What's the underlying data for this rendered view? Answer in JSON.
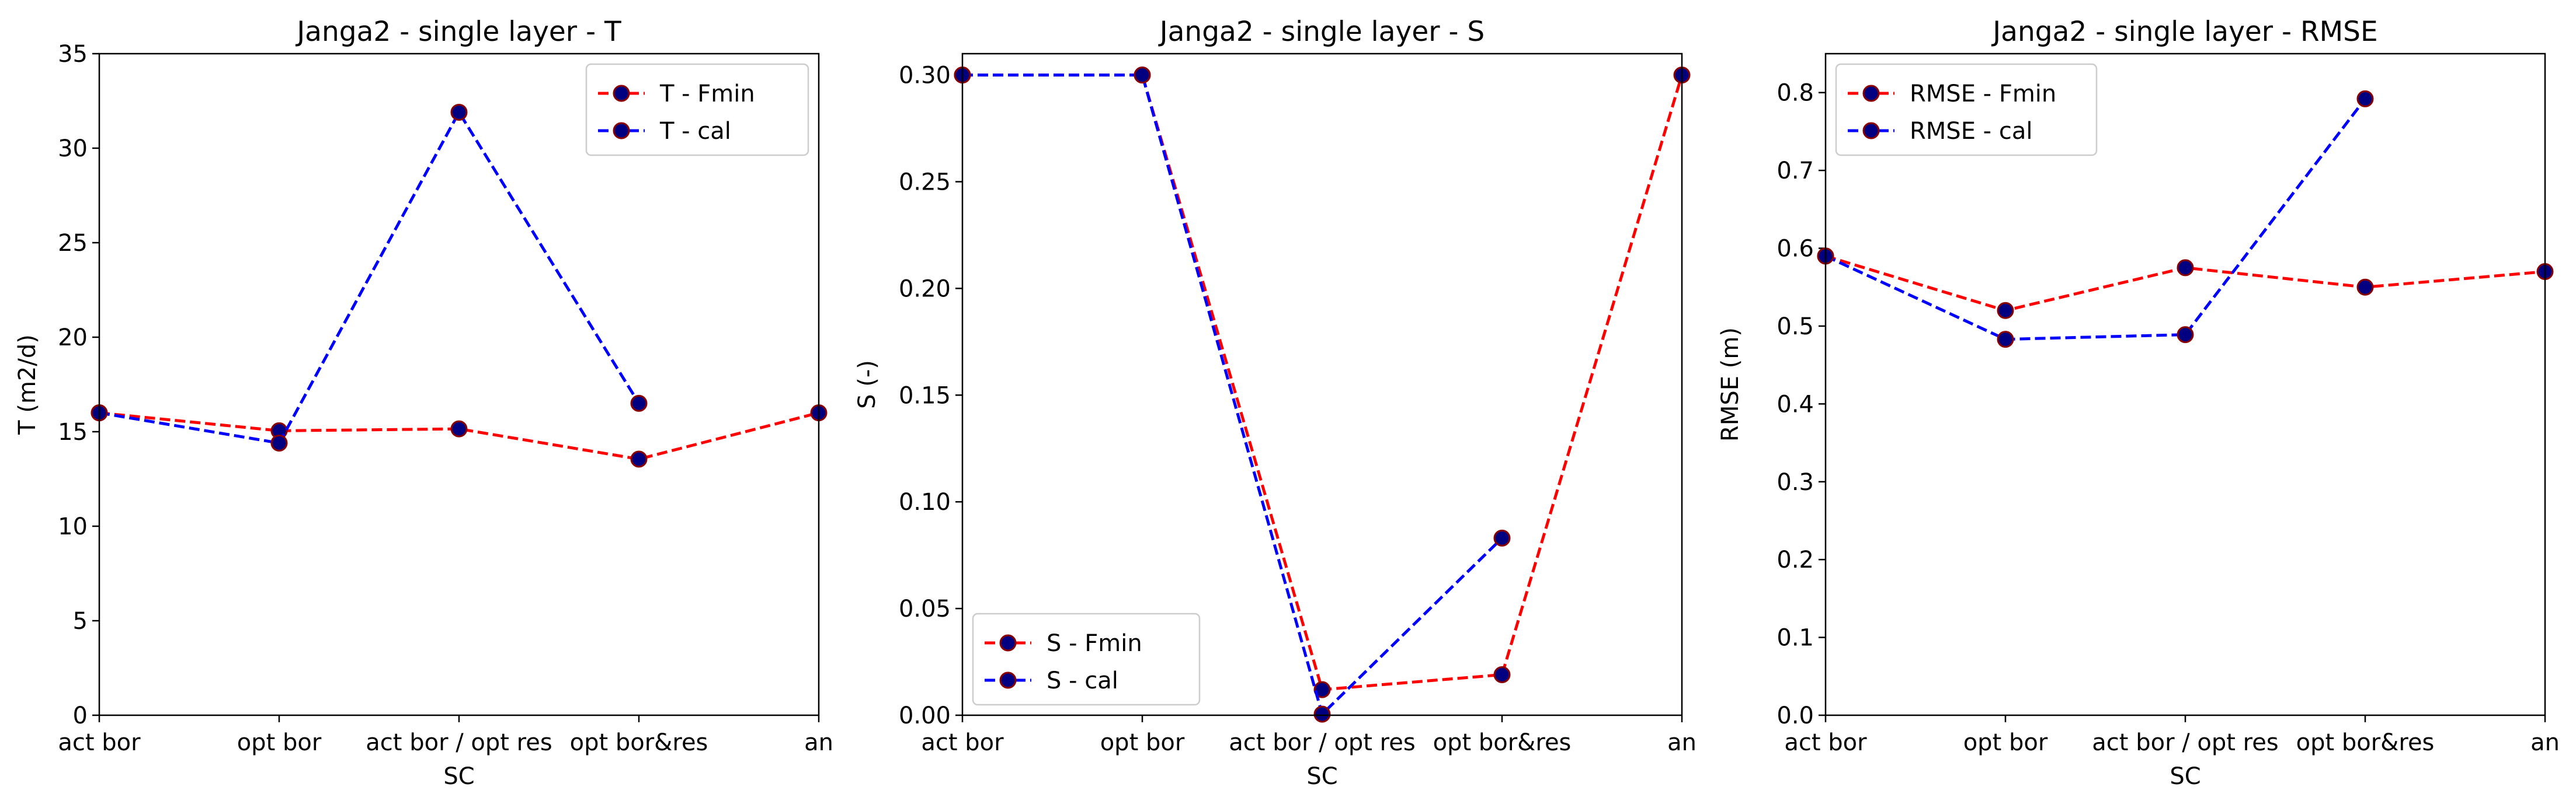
{
  "chart_data": [
    {
      "type": "line",
      "title": "Janga2 - single layer - T",
      "xlabel": "SC",
      "ylabel": "T (m2/d)",
      "categories": [
        "act bor",
        "opt bor",
        "act bor / opt res",
        "opt bor&res",
        "an"
      ],
      "ylim": [
        0,
        35
      ],
      "yticks": [
        "0",
        "5",
        "10",
        "15",
        "20",
        "25",
        "30",
        "35"
      ],
      "grid": false,
      "legend_position": "upper right",
      "series": [
        {
          "name": "T - Fmin",
          "color": "#ff0000",
          "values": [
            16.0,
            15.05,
            15.15,
            13.55,
            16.0
          ]
        },
        {
          "name": "T - cal",
          "color": "#0000ff",
          "values": [
            16.0,
            14.4,
            31.9,
            16.5,
            null
          ]
        }
      ]
    },
    {
      "type": "line",
      "title": "Janga2 - single layer - S",
      "xlabel": "SC",
      "ylabel": "S (-)",
      "categories": [
        "act bor",
        "opt bor",
        "act bor / opt res",
        "opt bor&res",
        "an"
      ],
      "ylim": [
        0,
        0.31
      ],
      "yticks": [
        "0.00",
        "0.05",
        "0.10",
        "0.15",
        "0.20",
        "0.25",
        "0.30"
      ],
      "grid": false,
      "legend_position": "lower left",
      "series": [
        {
          "name": "S - Fmin",
          "color": "#ff0000",
          "values": [
            0.3,
            0.3,
            0.012,
            0.019,
            0.3
          ]
        },
        {
          "name": "S - cal",
          "color": "#0000ff",
          "values": [
            0.3,
            0.3,
            0.0005,
            0.083,
            null
          ]
        }
      ]
    },
    {
      "type": "line",
      "title": "Janga2 - single layer - RMSE",
      "xlabel": "SC",
      "ylabel": "RMSE (m)",
      "categories": [
        "act bor",
        "opt bor",
        "act bor / opt res",
        "opt bor&res",
        "an"
      ],
      "ylim": [
        0,
        0.85
      ],
      "yticks": [
        "0.0",
        "0.1",
        "0.2",
        "0.3",
        "0.4",
        "0.5",
        "0.6",
        "0.7",
        "0.8"
      ],
      "grid": false,
      "legend_position": "upper left",
      "series": [
        {
          "name": "RMSE - Fmin",
          "color": "#ff0000",
          "values": [
            0.59,
            0.52,
            0.575,
            0.55,
            0.57
          ]
        },
        {
          "name": "RMSE - cal",
          "color": "#0000ff",
          "values": [
            0.59,
            0.483,
            0.489,
            0.792,
            null
          ]
        }
      ]
    }
  ]
}
